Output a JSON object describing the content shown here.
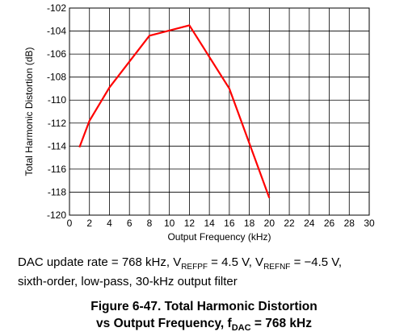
{
  "chart_data": {
    "type": "line",
    "xlabel": "Output Frequency (kHz)",
    "ylabel": "Total Harmonic Distortion (dB)",
    "xlim": [
      0,
      30
    ],
    "ylim": [
      -120,
      -102
    ],
    "x_ticks": [
      "0",
      "2",
      "4",
      "6",
      "8",
      "10",
      "12",
      "14",
      "16",
      "18",
      "20",
      "22",
      "24",
      "26",
      "28",
      "30"
    ],
    "y_ticks": [
      "-102",
      "-104",
      "-106",
      "-108",
      "-110",
      "-112",
      "-114",
      "-116",
      "-118",
      "-120"
    ],
    "grid": true,
    "series": [
      {
        "color": "#ff0000",
        "x": [
          1,
          2,
          4,
          8,
          12,
          16,
          20
        ],
        "y": [
          -114.1,
          -111.8,
          -108.9,
          -104.4,
          -103.5,
          -109.0,
          -118.5
        ]
      }
    ]
  },
  "note": {
    "line1_prefix": "DAC update rate = 768 kHz, V",
    "vrefpf_sub": "REFPF",
    "line1_mid": " = 4.5 V, V",
    "vrefnf_sub": "REFNF",
    "line1_suffix": " = −4.5 V,",
    "line2": "sixth-order, low-pass, 30-kHz output filter"
  },
  "caption": {
    "line1": "Figure 6-47. Total Harmonic Distortion",
    "line2_prefix": "vs Output Frequency, f",
    "line2_sub": "DAC",
    "line2_suffix": " = 768 kHz"
  }
}
